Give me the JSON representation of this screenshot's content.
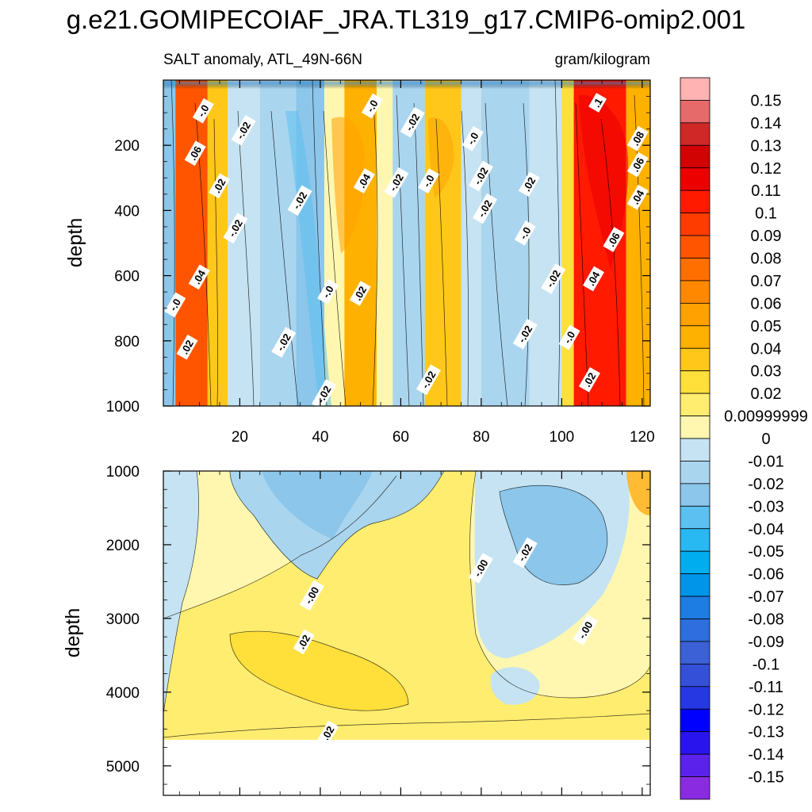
{
  "chart_data": {
    "type": "heatmap",
    "title": "g.e21.GOMIPECOIAF_JRA.TL319_g17.CMIP6-omip2.001",
    "subtitle_left": "SALT anomaly, ATL_49N-66N",
    "subtitle_right": "gram/kilogram",
    "x": {
      "range": [
        1,
        122
      ],
      "ticks": [
        "20",
        "40",
        "60",
        "80",
        "100",
        "120"
      ],
      "tick_values": [
        20,
        40,
        60,
        80,
        100,
        120
      ],
      "label": ""
    },
    "panels": [
      {
        "name": "upper",
        "ylabel": "depth",
        "ylim": [
          0,
          1000
        ],
        "yticks": [
          "200",
          "400",
          "600",
          "800",
          "1000"
        ],
        "ytick_values": [
          200,
          400,
          600,
          800,
          1000
        ],
        "bands": [
          {
            "x0": 1,
            "x1": 4,
            "value": -0.03
          },
          {
            "x0": 4,
            "x1": 12,
            "value": 0.08
          },
          {
            "x0": 12,
            "x1": 17,
            "value": 0.03
          },
          {
            "x0": 17,
            "x1": 25,
            "value": -0.01
          },
          {
            "x0": 25,
            "x1": 34,
            "value": -0.02
          },
          {
            "x0": 34,
            "x1": 41,
            "value": -0.03
          },
          {
            "x0": 41,
            "x1": 46,
            "value": 0.0
          },
          {
            "x0": 46,
            "x1": 54,
            "value": 0.04
          },
          {
            "x0": 54,
            "x1": 58,
            "value": 0.0
          },
          {
            "x0": 58,
            "x1": 66,
            "value": -0.02
          },
          {
            "x0": 66,
            "x1": 75,
            "value": 0.03
          },
          {
            "x0": 75,
            "x1": 80,
            "value": -0.01
          },
          {
            "x0": 80,
            "x1": 92,
            "value": -0.02
          },
          {
            "x0": 92,
            "x1": 100,
            "value": -0.01
          },
          {
            "x0": 100,
            "x1": 103,
            "value": 0.02
          },
          {
            "x0": 103,
            "x1": 116,
            "value": 0.1
          },
          {
            "x0": 116,
            "x1": 122,
            "value": 0.04
          }
        ],
        "contour_labels": [
          {
            "text": "-.0",
            "x": 11,
            "y": 95
          },
          {
            "text": "-.02",
            "x": 21,
            "y": 155
          },
          {
            "text": "-.0",
            "x": 53,
            "y": 80
          },
          {
            "text": "-.02",
            "x": 63,
            "y": 130
          },
          {
            "text": ".1",
            "x": 109,
            "y": 70
          },
          {
            "text": ".06",
            "x": 9,
            "y": 225
          },
          {
            "text": ".08",
            "x": 119,
            "y": 180
          },
          {
            "text": ".06",
            "x": 119,
            "y": 260
          },
          {
            "text": ".04",
            "x": 119,
            "y": 360
          },
          {
            "text": ".02",
            "x": 15,
            "y": 325
          },
          {
            "text": "-.02",
            "x": 19,
            "y": 455
          },
          {
            "text": "-.02",
            "x": 35,
            "y": 370
          },
          {
            "text": ".04",
            "x": 51,
            "y": 310
          },
          {
            "text": "-.02",
            "x": 59,
            "y": 315
          },
          {
            "text": "-.0",
            "x": 67,
            "y": 310
          },
          {
            "text": "-.0",
            "x": 78,
            "y": 180
          },
          {
            "text": "-.02",
            "x": 80,
            "y": 295
          },
          {
            "text": "-.02",
            "x": 81,
            "y": 395
          },
          {
            "text": ".02",
            "x": 92,
            "y": 320
          },
          {
            "text": "-.0",
            "x": 91,
            "y": 470
          },
          {
            "text": ".06",
            "x": 113,
            "y": 490
          },
          {
            "text": ".04",
            "x": 10,
            "y": 605
          },
          {
            "text": "-.0",
            "x": 4,
            "y": 690
          },
          {
            "text": "-.0",
            "x": 42,
            "y": 650
          },
          {
            "text": ".02",
            "x": 50,
            "y": 655
          },
          {
            "text": "-.02",
            "x": 98,
            "y": 610
          },
          {
            "text": ".04",
            "x": 108,
            "y": 610
          },
          {
            "text": "-.02",
            "x": 31,
            "y": 805
          },
          {
            "text": "-.02",
            "x": 91,
            "y": 780
          },
          {
            "text": "-.0",
            "x": 102,
            "y": 790
          },
          {
            "text": ".02",
            "x": 7,
            "y": 820
          },
          {
            "text": "-.02",
            "x": 67,
            "y": 920
          },
          {
            "text": ".02",
            "x": 107,
            "y": 920
          },
          {
            "text": "-.02",
            "x": 41,
            "y": 965
          }
        ]
      },
      {
        "name": "lower",
        "ylabel": "depth",
        "ylim": [
          1000,
          5400
        ],
        "yticks": [
          "1000",
          "2000",
          "3000",
          "4000",
          "5000"
        ],
        "ytick_values": [
          1000,
          2000,
          3000,
          4000,
          5000
        ],
        "data_bottom": 4620,
        "contour_labels": [
          {
            "text": "-.00",
            "x": 38,
            "y": 2690
          },
          {
            "text": ".02",
            "x": 36,
            "y": 3320
          },
          {
            "text": "-.00",
            "x": 80,
            "y": 2320
          },
          {
            "text": "-.02",
            "x": 91,
            "y": 2110
          },
          {
            "text": "-.00",
            "x": 106,
            "y": 3160
          },
          {
            "text": ".02",
            "x": 42,
            "y": 4560
          }
        ]
      }
    ],
    "colorbar": {
      "label": "",
      "ticks": [
        "0.15",
        "0.14",
        "0.13",
        "0.12",
        "0.11",
        "0.1",
        "0.09",
        "0.08",
        "0.07",
        "0.06",
        "0.05",
        "0.04",
        "0.03",
        "0.02",
        "0.00999999",
        "0",
        "-0.01",
        "-0.02",
        "-0.03",
        "-0.04",
        "-0.05",
        "-0.06",
        "-0.07",
        "-0.08",
        "-0.09",
        "-0.1",
        "-0.11",
        "-0.12",
        "-0.13",
        "-0.14",
        "-0.15"
      ],
      "colors": [
        "#ffb3b3",
        "#e76a6a",
        "#d02727",
        "#d10303",
        "#ed0000",
        "#ff1a00",
        "#ff3c00",
        "#ff5500",
        "#ff6f00",
        "#ff8800",
        "#ffa100",
        "#ffb100",
        "#ffc71a",
        "#ffdf3a",
        "#ffed70",
        "#fff7b0",
        "#c5e3f2",
        "#aad5ee",
        "#8cc6ea",
        "#5cc0f0",
        "#28b9f3",
        "#00aeef",
        "#0095e8",
        "#1d7de3",
        "#2e6ede",
        "#3c60d6",
        "#3550d8",
        "#2638e2",
        "#0000ff",
        "#2a14ee",
        "#5a22ea",
        "#8a2be2"
      ]
    }
  }
}
